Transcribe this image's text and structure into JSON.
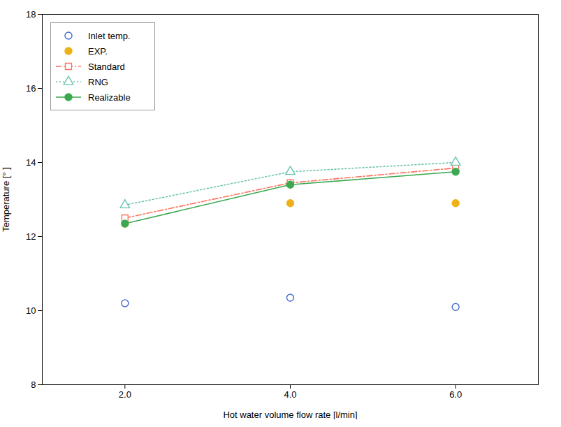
{
  "chart_data": {
    "type": "line",
    "x": [
      2,
      4,
      6
    ],
    "series": [
      {
        "name": "Inlet temp.",
        "type": "scatter",
        "marker": "circle_open",
        "values": [
          10.2,
          10.35,
          10.1
        ]
      },
      {
        "name": "EXP.",
        "type": "scatter",
        "marker": "circle",
        "values": [
          12.35,
          12.9,
          12.9
        ]
      },
      {
        "name": "Standard",
        "type": "line",
        "marker": "square_open",
        "line_style": "dashdot",
        "values": [
          12.5,
          13.45,
          13.85
        ]
      },
      {
        "name": "RNG",
        "type": "line",
        "marker": "triangle_open",
        "line_style": "dotted",
        "values": [
          12.85,
          13.75,
          14.0
        ]
      },
      {
        "name": "Realizable",
        "type": "line",
        "marker": "circle",
        "line_style": "solid",
        "values": [
          12.35,
          13.4,
          13.75
        ]
      }
    ],
    "xlabel": "Hot water volume flow rate [l/min]",
    "ylabel": "Temperature [° ]",
    "xlim": [
      1.0,
      7.0
    ],
    "ylim": [
      8,
      18
    ],
    "xticks": [
      2,
      4,
      6
    ],
    "yticks": [
      8,
      10,
      12,
      14,
      16,
      18
    ],
    "grid": false,
    "legend": "upper left"
  }
}
